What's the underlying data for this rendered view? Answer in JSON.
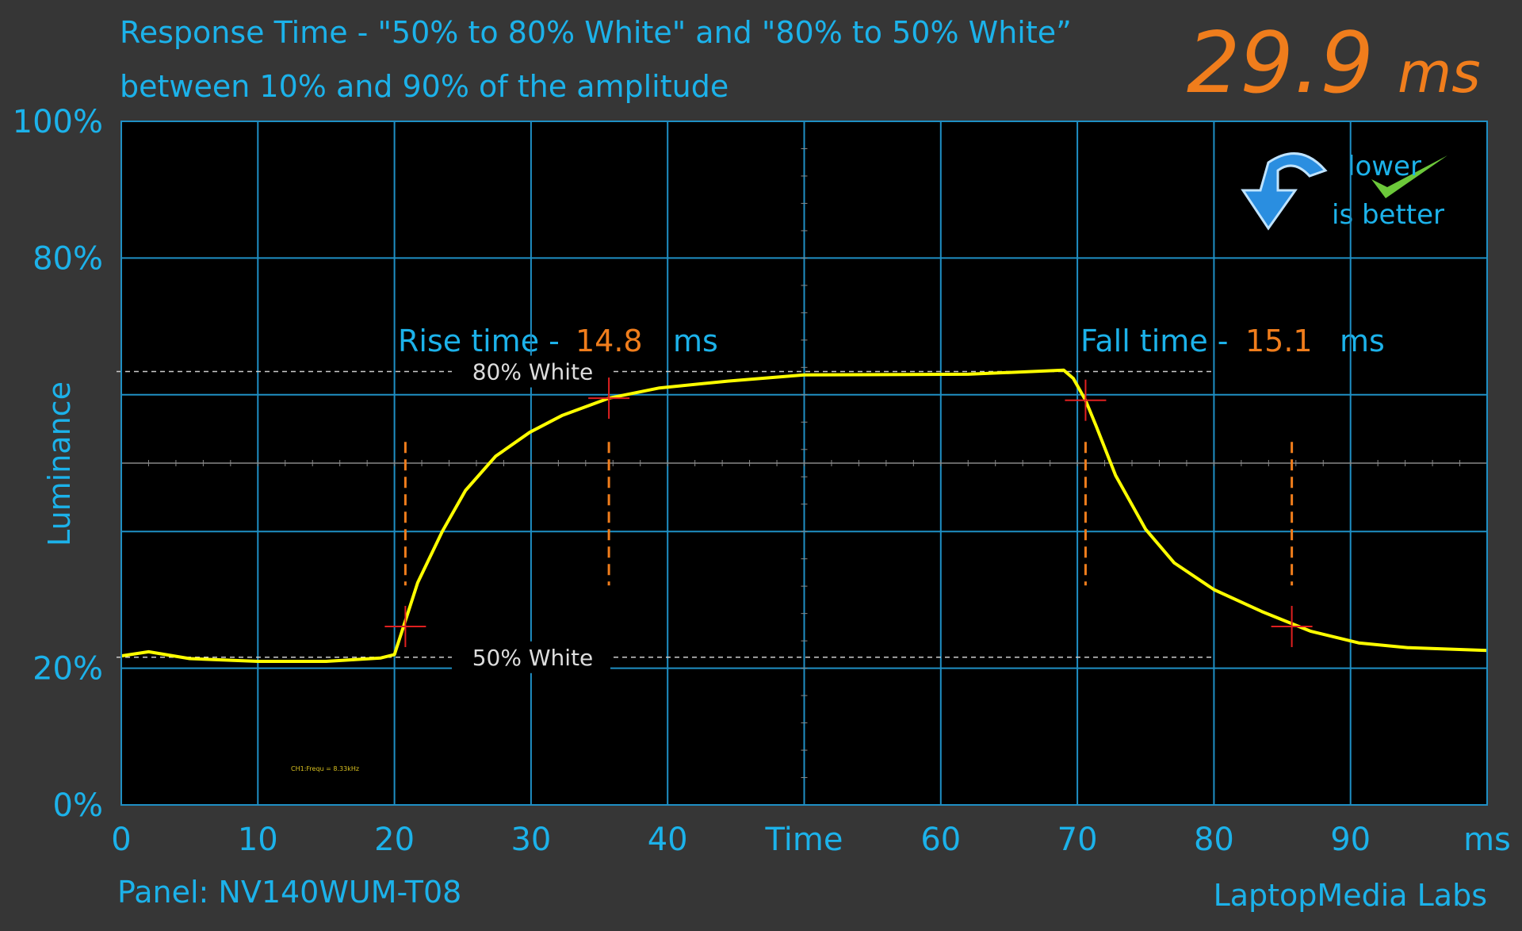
{
  "chart_data": {
    "type": "line",
    "title": "Response Time - \"50% to 80% White\" and \"80% to 50% White”",
    "subtitle": "between 10% and 90% of the amplitude",
    "total_time": 29.9,
    "total_unit": "ms",
    "y_label": "Luminance",
    "panel": "Panel: NV140WUM-T08",
    "credit": "LaptopMedia Labs",
    "badge": [
      "lower",
      "is better"
    ],
    "probe_note": "CH1:Frequ = 8.33kHz",
    "rise_label": "Rise time -",
    "rise_time": 14.8,
    "fall_label": "Fall time -",
    "fall_time": 15.1,
    "time_unit": "ms",
    "xlim": [
      0,
      100
    ],
    "ylim": [
      0,
      100
    ],
    "xticks": [
      0,
      10,
      20,
      30,
      40,
      {
        "value": 50,
        "label": "Time"
      },
      60,
      70,
      80,
      90,
      {
        "value": 100,
        "label": "ms"
      }
    ],
    "yticks": [
      {
        "value": 0,
        "label": "0%"
      },
      {
        "value": 20,
        "label": "20%"
      },
      {
        "value": 80,
        "label": "80%"
      },
      {
        "value": 100,
        "label": "100%"
      }
    ],
    "y_minor_grid": [
      40,
      60
    ],
    "center_line": 50,
    "grid": true,
    "reference_lines": [
      {
        "label": "80% White",
        "value": 63.4
      },
      {
        "label": "50% White",
        "value": 21.6
      }
    ],
    "reference_xlim": [
      0,
      80
    ],
    "cursor_x": [
      20.8,
      35.7,
      70.6,
      85.7
    ],
    "cursor_ylim": [
      32.1,
      53.1
    ],
    "cursor_color": "#f07d1c",
    "crosshairs": {
      "color": "#e02020",
      "x": [
        20.8,
        35.7,
        70.6,
        85.7
      ],
      "values": [
        26.1,
        59.5,
        59.2,
        26.1
      ]
    },
    "x": [
      0,
      2,
      5,
      10,
      15,
      19,
      20,
      21.7,
      23.5,
      25.2,
      27.4,
      29.9,
      32.3,
      35.7,
      39.4,
      44.4,
      50,
      62,
      69,
      69.7,
      70.6,
      71.4,
      72.8,
      75,
      77.1,
      80,
      83.5,
      87.1,
      90.6,
      94.2,
      100
    ],
    "series": [
      {
        "color": "#ffff00",
        "values": [
          21.8,
          22.4,
          21.4,
          21,
          21,
          21.5,
          22,
          32.5,
          40,
          46,
          51,
          54.5,
          57,
          59.5,
          61,
          62,
          62.9,
          63,
          63.6,
          62.4,
          59.2,
          55.3,
          48.2,
          40.3,
          35.4,
          31.5,
          28.3,
          25.4,
          23.7,
          23,
          22.6
        ]
      }
    ]
  }
}
